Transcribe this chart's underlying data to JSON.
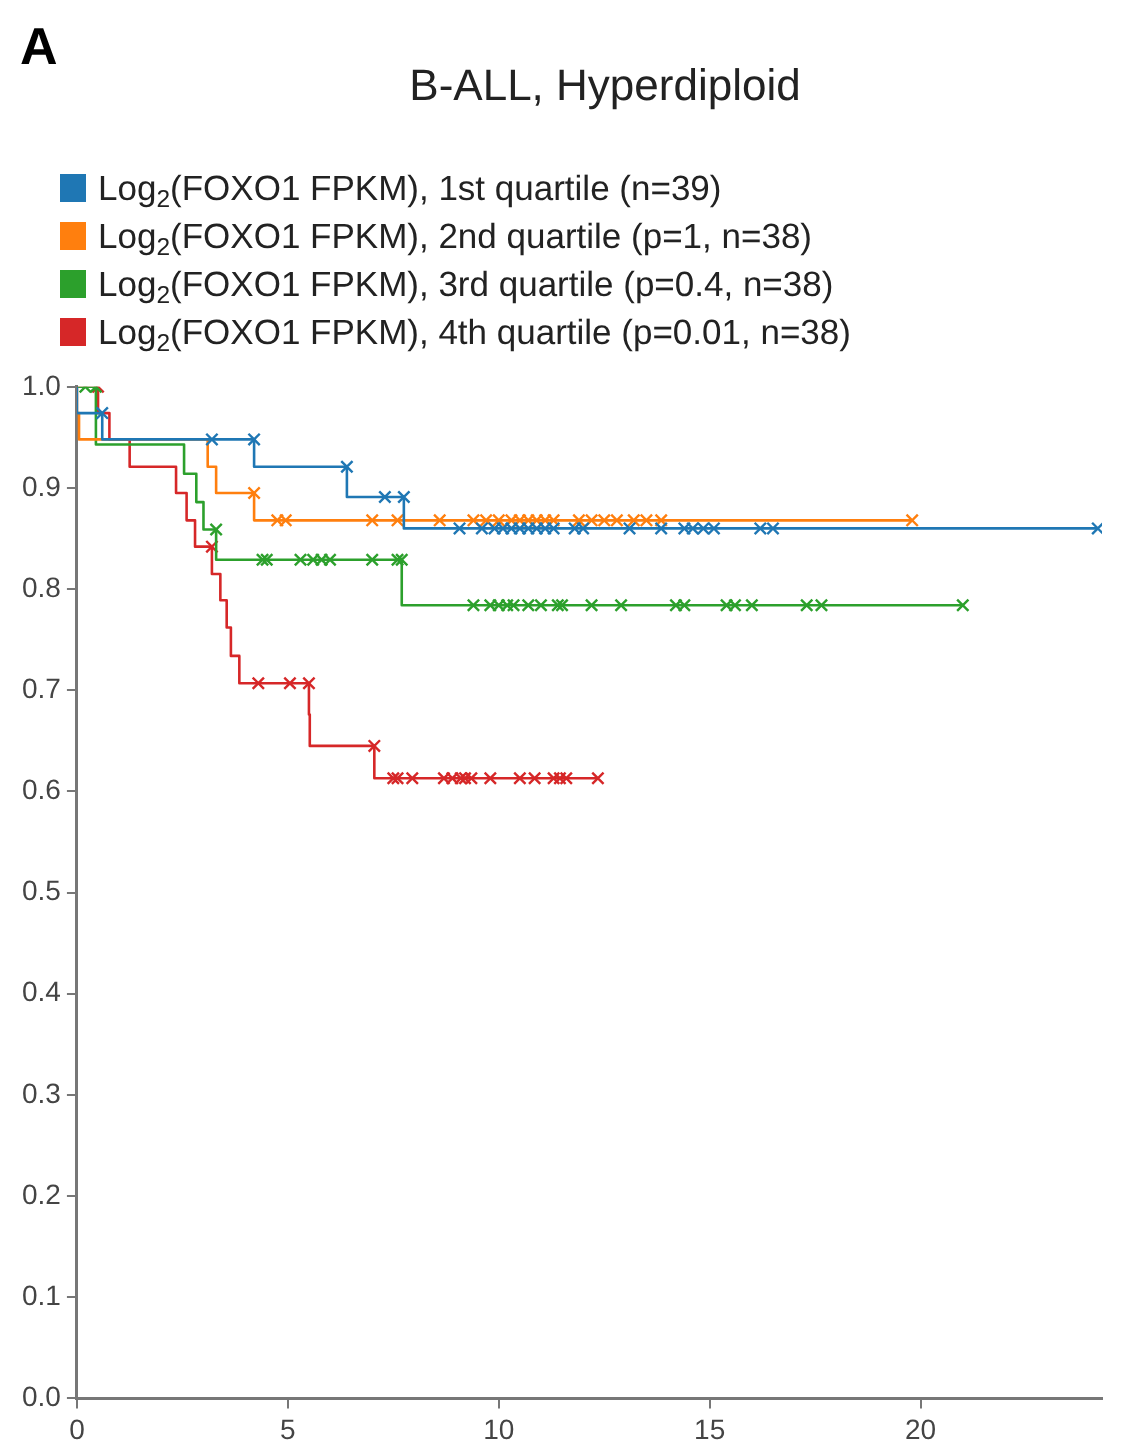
{
  "chart_data": {
    "type": "step",
    "title": "B-ALL, Hyperdiploid",
    "annotations": [
      "A"
    ],
    "legend": "top left",
    "marker": "cross",
    "grid": false,
    "xlim": [
      0,
      24.3
    ],
    "xticks": [
      0,
      5,
      10,
      15,
      20
    ],
    "ylim": [
      0,
      1
    ],
    "yticks": [
      {
        "value": 0,
        "label": "0.0"
      },
      0.1,
      0.2,
      0.3,
      0.4,
      0.5,
      0.6,
      0.7,
      0.8,
      0.9,
      {
        "value": 1,
        "label": "1.0"
      }
    ],
    "series": [
      {
        "name": "Log$_{2}$(FOXO1 FPKM), 1st quartile (n=39)",
        "color": "#1f77b4",
        "x": [
          0,
          0.57,
          0.6,
          1.27,
          3.2,
          4.2,
          4.4,
          6.4,
          6.78,
          7.3,
          7.75,
          7.8,
          9.07,
          9.6,
          9.9,
          10.1,
          10.3,
          10.5,
          10.7,
          10.9,
          11.1,
          11.3,
          11.8,
          12.0,
          13.1,
          13.85,
          14.4,
          14.6,
          14.85,
          15.1,
          16.2,
          16.5,
          24.2
        ],
        "values": [
          1,
          0.974,
          0.974,
          0.948,
          0.948,
          0.948,
          0.921,
          0.921,
          0.891,
          0.891,
          0.891,
          0.86,
          0.86,
          0.86,
          0.86,
          0.86,
          0.86,
          0.86,
          0.86,
          0.86,
          0.86,
          0.86,
          0.86,
          0.86,
          0.86,
          0.86,
          0.86,
          0.86,
          0.86,
          0.86,
          0.86,
          0.86,
          0.86
        ]
      },
      {
        "name": "Log$_{2}$(FOXO1 FPKM), 2nd quartile (p=1, n=38)",
        "color": "#ff7f0e",
        "x": [
          0,
          0.05,
          3.1,
          3.3,
          3.5,
          4.2,
          4.5,
          4.75,
          4.95,
          7.0,
          7.6,
          8.6,
          9.4,
          9.7,
          10.0,
          10.3,
          10.5,
          10.7,
          10.9,
          11.1,
          11.3,
          11.9,
          12.2,
          12.5,
          12.8,
          13.2,
          13.5,
          13.85,
          19.8
        ],
        "values": [
          1,
          0.974,
          0.948,
          0.921,
          0.895,
          0.895,
          0.868,
          0.868,
          0.868,
          0.868,
          0.868,
          0.868,
          0.868,
          0.868,
          0.868,
          0.868,
          0.868,
          0.868,
          0.868,
          0.868,
          0.868,
          0.868,
          0.868,
          0.868,
          0.868,
          0.868,
          0.868,
          0.868,
          0.868
        ]
      },
      {
        "name": "Log$_{2}$(FOXO1 FPKM), 3rd quartile (p=0.4, n=38)",
        "color": "#2ca02c",
        "x": [
          0,
          0.2,
          0.45,
          2.54,
          2.83,
          3.0,
          3.15,
          3.3,
          4.0,
          4.4,
          4.5,
          5.3,
          5.6,
          5.8,
          6.0,
          7.0,
          7.6,
          7.7,
          9.3,
          9.4,
          9.8,
          10.0,
          10.2,
          10.35,
          10.7,
          11.0,
          11.4,
          11.5,
          12.2,
          12.9,
          14.2,
          14.4,
          15.4,
          15.6,
          16.0,
          17.3,
          17.65,
          21.0
        ],
        "values": [
          1,
          1,
          1,
          0.943,
          0.914,
          0.886,
          0.859,
          0.859,
          0.829,
          0.829,
          0.829,
          0.829,
          0.829,
          0.829,
          0.829,
          0.829,
          0.829,
          0.829,
          0.784,
          0.784,
          0.784,
          0.784,
          0.784,
          0.784,
          0.784,
          0.784,
          0.784,
          0.784,
          0.784,
          0.784,
          0.784,
          0.784,
          0.784,
          0.784,
          0.784,
          0.784,
          0.784,
          0.784
        ]
      },
      {
        "name": "Log$_{2}$(FOXO1 FPKM), 4th quartile (p=0.01, n=38)",
        "color": "#d62728",
        "x": [
          0,
          0.5,
          0.77,
          1.25,
          2.35,
          2.6,
          2.8,
          3.0,
          3.2,
          3.4,
          3.55,
          3.65,
          3.85,
          4.05,
          4.3,
          5.05,
          5.5,
          5.52,
          6.95,
          7.05,
          7.15,
          7.5,
          7.6,
          7.95,
          8.7,
          8.9,
          9.1,
          9.2,
          9.35,
          9.8,
          10.5,
          10.85,
          11.3,
          11.45,
          11.6,
          12.35
        ],
        "values": [
          1,
          1,
          0.974,
          0.948,
          0.921,
          0.895,
          0.868,
          0.842,
          0.842,
          0.815,
          0.789,
          0.762,
          0.734,
          0.707,
          0.707,
          0.707,
          0.707,
          0.676,
          0.645,
          0.645,
          0.613,
          0.613,
          0.613,
          0.613,
          0.613,
          0.613,
          0.613,
          0.613,
          0.613,
          0.613,
          0.613,
          0.613,
          0.613,
          0.613,
          0.613,
          0.613
        ]
      }
    ]
  }
}
